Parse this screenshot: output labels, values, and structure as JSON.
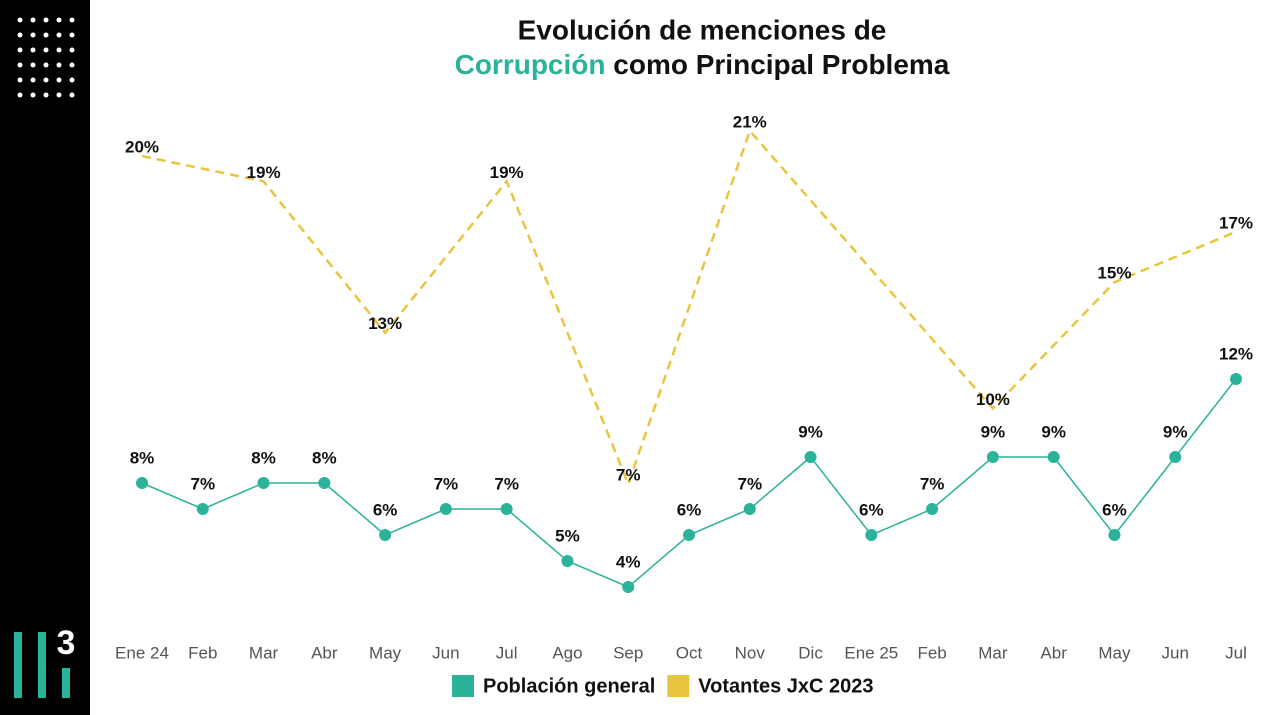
{
  "logo_text": "3",
  "chart_data": {
    "type": "line",
    "title": [
      "Evolución de menciones de",
      "Corrupción",
      "como Principal Problema"
    ],
    "title_highlight_color": "#2bb39a",
    "categories": [
      "Ene 24",
      "Feb",
      "Mar",
      "Abr",
      "May",
      "Jun",
      "Jul",
      "Ago",
      "Sep",
      "Oct",
      "Nov",
      "Dic",
      "Ene 25",
      "Feb",
      "Mar",
      "Abr",
      "May",
      "Jun",
      "Jul"
    ],
    "ylim": [
      0,
      23
    ],
    "y2lim": [
      -1.2,
      22.5
    ],
    "connect_nulls": true,
    "series": [
      {
        "name": "Población general",
        "color": "#2bb39a",
        "dashed": false,
        "markers": true,
        "values": [
          8,
          7,
          8,
          8,
          6,
          7,
          7,
          5,
          4,
          6,
          7,
          9,
          6,
          7,
          9,
          9,
          6,
          9,
          12
        ],
        "value_labels": [
          "8%",
          "7%",
          "8%",
          "8%",
          "6%",
          "7%",
          "7%",
          "5%",
          "4%",
          "6%",
          "7%",
          "9%",
          "6%",
          "7%",
          "9%",
          "9%",
          "6%",
          "9%",
          "12%"
        ]
      },
      {
        "name": "Votantes JxC 2023",
        "color": "#e9c53f",
        "dashed": true,
        "markers": false,
        "axis": "y2",
        "values": [
          20,
          null,
          19,
          null,
          13,
          null,
          19,
          null,
          7,
          null,
          21,
          null,
          null,
          null,
          10,
          null,
          15,
          null,
          17
        ],
        "value_labels": [
          "20%",
          null,
          "19%",
          null,
          "13%",
          null,
          "19%",
          null,
          "7%",
          null,
          "21%",
          null,
          null,
          null,
          "10%",
          null,
          "15%",
          null,
          "17%"
        ]
      }
    ]
  }
}
